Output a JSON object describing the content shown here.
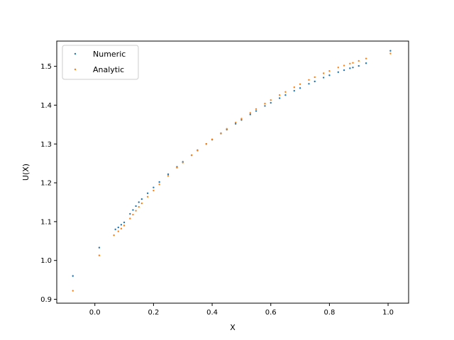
{
  "chart_data": {
    "type": "scatter",
    "title": "",
    "xlabel": "X",
    "ylabel": "U(X)",
    "xlim": [
      -0.13,
      1.07
    ],
    "ylim": [
      0.89,
      1.565
    ],
    "xticks": [
      0.0,
      0.2,
      0.4,
      0.6,
      0.8,
      1.0
    ],
    "xtick_labels": [
      "0.0",
      "0.2",
      "0.4",
      "0.6",
      "0.8",
      "1.0"
    ],
    "yticks": [
      0.9,
      1.0,
      1.1,
      1.2,
      1.3,
      1.4,
      1.5
    ],
    "ytick_labels": [
      "0.9",
      "1.0",
      "1.1",
      "1.2",
      "1.3",
      "1.4",
      "1.5"
    ],
    "grid": false,
    "legend_position": "top-left",
    "series": [
      {
        "name": "Numeric",
        "color": "#1f77b4",
        "points": [
          [
            -0.075,
            0.96
          ],
          [
            0.015,
            1.033
          ],
          [
            1.008,
            1.54
          ],
          [
            0.925,
            1.508
          ],
          [
            0.07,
            1.08
          ],
          [
            0.08,
            1.085
          ],
          [
            0.09,
            1.092
          ],
          [
            0.1,
            1.098
          ],
          [
            0.12,
            1.12
          ],
          [
            0.13,
            1.13
          ],
          [
            0.14,
            1.14
          ],
          [
            0.15,
            1.15
          ],
          [
            0.16,
            1.158
          ],
          [
            0.18,
            1.173
          ],
          [
            0.2,
            1.188
          ],
          [
            0.22,
            1.202
          ],
          [
            0.25,
            1.222
          ],
          [
            0.28,
            1.241
          ],
          [
            0.3,
            1.254
          ],
          [
            0.33,
            1.271
          ],
          [
            0.35,
            1.284
          ],
          [
            0.38,
            1.3
          ],
          [
            0.4,
            1.311
          ],
          [
            0.43,
            1.327
          ],
          [
            0.45,
            1.337
          ],
          [
            0.48,
            1.352
          ],
          [
            0.5,
            1.362
          ],
          [
            0.53,
            1.376
          ],
          [
            0.55,
            1.385
          ],
          [
            0.58,
            1.398
          ],
          [
            0.6,
            1.406
          ],
          [
            0.63,
            1.418
          ],
          [
            0.65,
            1.426
          ],
          [
            0.68,
            1.437
          ],
          [
            0.7,
            1.444
          ],
          [
            0.73,
            1.455
          ],
          [
            0.75,
            1.461
          ],
          [
            0.78,
            1.471
          ],
          [
            0.8,
            1.477
          ],
          [
            0.83,
            1.485
          ],
          [
            0.85,
            1.49
          ],
          [
            0.87,
            1.495
          ],
          [
            0.88,
            1.497
          ],
          [
            0.9,
            1.501
          ]
        ]
      },
      {
        "name": "Analytic",
        "color": "#ff7f0e",
        "points": [
          [
            -0.075,
            0.922
          ],
          [
            0.015,
            1.013
          ],
          [
            1.008,
            1.533
          ],
          [
            0.925,
            1.52
          ],
          [
            0.065,
            1.065
          ],
          [
            0.08,
            1.075
          ],
          [
            0.09,
            1.082
          ],
          [
            0.1,
            1.09
          ],
          [
            0.12,
            1.108
          ],
          [
            0.13,
            1.118
          ],
          [
            0.14,
            1.128
          ],
          [
            0.15,
            1.138
          ],
          [
            0.16,
            1.147
          ],
          [
            0.18,
            1.164
          ],
          [
            0.2,
            1.18
          ],
          [
            0.22,
            1.196
          ],
          [
            0.25,
            1.218
          ],
          [
            0.28,
            1.239
          ],
          [
            0.3,
            1.252
          ],
          [
            0.33,
            1.271
          ],
          [
            0.35,
            1.283
          ],
          [
            0.38,
            1.3
          ],
          [
            0.4,
            1.312
          ],
          [
            0.43,
            1.328
          ],
          [
            0.45,
            1.339
          ],
          [
            0.48,
            1.355
          ],
          [
            0.5,
            1.365
          ],
          [
            0.53,
            1.38
          ],
          [
            0.55,
            1.39
          ],
          [
            0.58,
            1.404
          ],
          [
            0.6,
            1.413
          ],
          [
            0.63,
            1.426
          ],
          [
            0.65,
            1.434
          ],
          [
            0.68,
            1.446
          ],
          [
            0.7,
            1.454
          ],
          [
            0.73,
            1.465
          ],
          [
            0.75,
            1.472
          ],
          [
            0.78,
            1.482
          ],
          [
            0.8,
            1.488
          ],
          [
            0.83,
            1.497
          ],
          [
            0.85,
            1.502
          ],
          [
            0.87,
            1.507
          ],
          [
            0.88,
            1.509
          ],
          [
            0.9,
            1.514
          ]
        ]
      }
    ]
  }
}
